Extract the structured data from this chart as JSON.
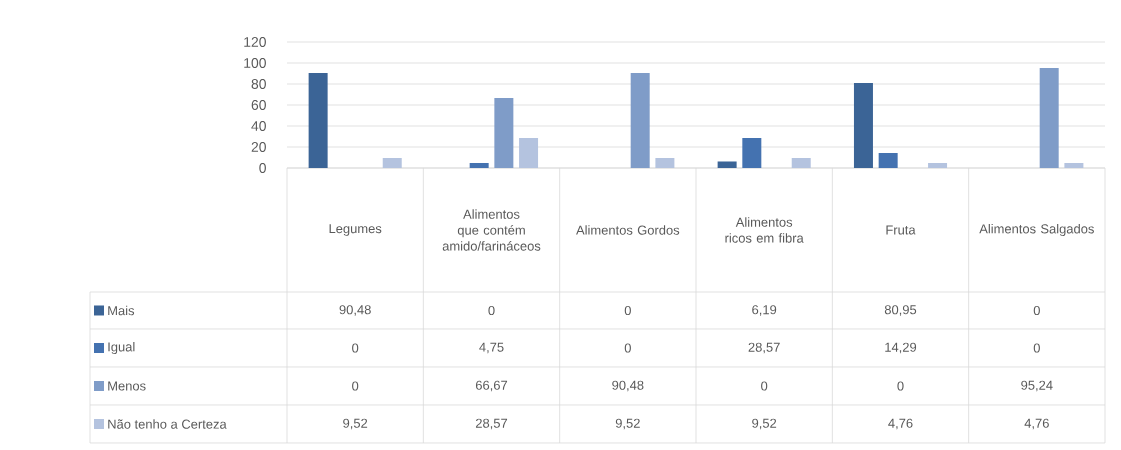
{
  "chart_data": {
    "type": "bar",
    "categories": [
      "Legumes",
      "Alimentos que contém amido/farináceos",
      "Alimentos Gordos",
      "Alimentos ricos em fibra",
      "Fruta",
      "Alimentos Salgados"
    ],
    "series": [
      {
        "name": "Mais",
        "color": "#3b6496",
        "values": [
          90.48,
          0,
          0,
          6.19,
          80.95,
          0
        ],
        "value_labels": [
          "90,48",
          "0",
          "0",
          "6,19",
          "80,95",
          "0"
        ]
      },
      {
        "name": "Igual",
        "color": "#4472b0",
        "values": [
          0,
          4.75,
          0,
          28.57,
          14.29,
          0
        ],
        "value_labels": [
          "0",
          "4,75",
          "0",
          "28,57",
          "14,29",
          "0"
        ]
      },
      {
        "name": "Menos",
        "color": "#7f9cc8",
        "values": [
          0,
          66.67,
          90.48,
          0,
          0,
          95.24
        ],
        "value_labels": [
          "0",
          "66,67",
          "90,48",
          "0",
          "0",
          "95,24"
        ]
      },
      {
        "name": "Não tenho a Certeza",
        "color": "#b4c3df",
        "values": [
          9.52,
          28.57,
          9.52,
          9.52,
          4.76,
          4.76
        ],
        "value_labels": [
          "9,52",
          "28,57",
          "9,52",
          "9,52",
          "4,76",
          "4,76"
        ]
      }
    ],
    "ylim": [
      0,
      120
    ],
    "yticks": [
      0,
      20,
      40,
      60,
      80,
      100,
      120
    ],
    "grid": "y",
    "legend": "bottom left"
  }
}
